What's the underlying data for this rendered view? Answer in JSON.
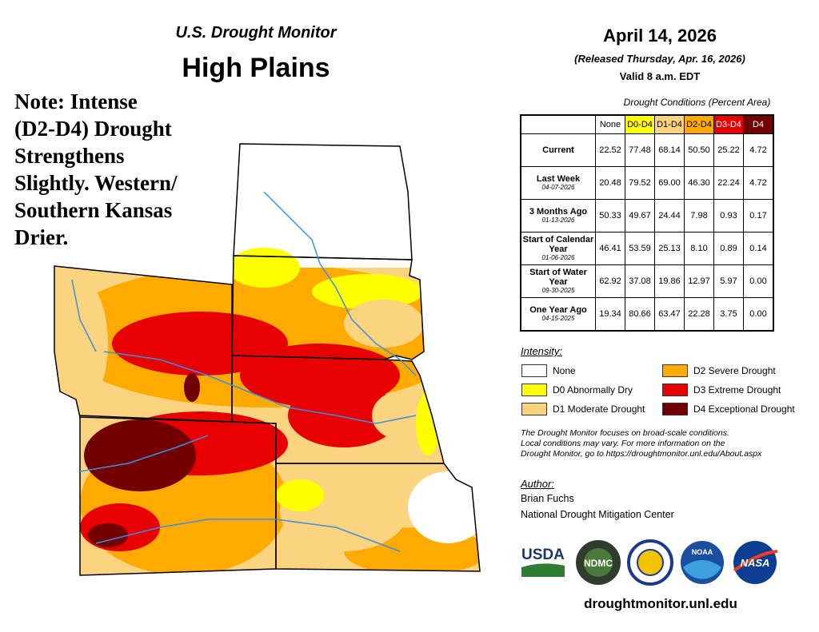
{
  "header": {
    "title": "U.S. Drought Monitor",
    "region": "High Plains",
    "date": "April 14, 2026",
    "released": "(Released Thursday, Apr. 16, 2026)",
    "valid": "Valid 8 a.m. EDT"
  },
  "note": [
    "Note: Intense",
    "(D2-D4) Drought",
    "Strengthens",
    "Slightly. Western/",
    "Southern Kansas",
    "Drier."
  ],
  "table": {
    "caption": "Drought Conditions (Percent Area)",
    "columns": [
      {
        "label": "None",
        "color": "#ffffff",
        "text_color": "#000000"
      },
      {
        "label": "D0-D4",
        "color": "#ffff00",
        "text_color": "#000000"
      },
      {
        "label": "D1-D4",
        "color": "#fcd37f",
        "text_color": "#000000"
      },
      {
        "label": "D2-D4",
        "color": "#ffaa00",
        "text_color": "#000000"
      },
      {
        "label": "D3-D4",
        "color": "#e60000",
        "text_color": "#ffffff"
      },
      {
        "label": "D4",
        "color": "#730000",
        "text_color": "#ffffff"
      }
    ],
    "rows": [
      {
        "label": "Current",
        "values": [
          "22.52",
          "77.48",
          "68.14",
          "50.50",
          "25.22",
          "4.72"
        ]
      },
      {
        "label": "Last Week",
        "date": "04-07-2026",
        "values": [
          "20.48",
          "79.52",
          "69.00",
          "46.30",
          "22.24",
          "4.72"
        ]
      },
      {
        "label": "3 Months Ago",
        "date": "01-13-2026",
        "values": [
          "50.33",
          "49.67",
          "24.44",
          "7.98",
          "0.93",
          "0.17"
        ]
      },
      {
        "label": "Start of Calendar Year",
        "date": "01-06-2026",
        "values": [
          "46.41",
          "53.59",
          "25.13",
          "8.10",
          "0.89",
          "0.14"
        ]
      },
      {
        "label": "Start of Water Year",
        "date": "09-30-2025",
        "values": [
          "62.92",
          "37.08",
          "19.86",
          "12.97",
          "5.97",
          "0.00"
        ]
      },
      {
        "label": "One Year Ago",
        "date": "04-15-2025",
        "values": [
          "19.34",
          "80.66",
          "63.47",
          "22.28",
          "3.75",
          "0.00"
        ]
      }
    ]
  },
  "legend": {
    "title": "Intensity:",
    "items": [
      {
        "label": "None",
        "color": "#ffffff"
      },
      {
        "label": "D0 Abnormally Dry",
        "color": "#ffff00"
      },
      {
        "label": "D1 Moderate Drought",
        "color": "#fcd37f"
      },
      {
        "label": "D2 Severe Drought",
        "color": "#ffaa00"
      },
      {
        "label": "D3 Extreme Drought",
        "color": "#e60000"
      },
      {
        "label": "D4 Exceptional Drought",
        "color": "#730000"
      }
    ]
  },
  "footnote": [
    "The Drought Monitor focuses on broad-scale conditions.",
    "Local conditions may vary. For more information on the",
    "Drought Monitor, go to https://droughtmonitor.unl.edu/About.aspx"
  ],
  "author": {
    "heading": "Author:",
    "name": "Brian Fuchs",
    "organization": "National Drought Mitigation Center"
  },
  "logos": [
    "USDA",
    "NDMC",
    "NOAA",
    "NASA"
  ],
  "url": "droughtmonitor.unl.edu"
}
